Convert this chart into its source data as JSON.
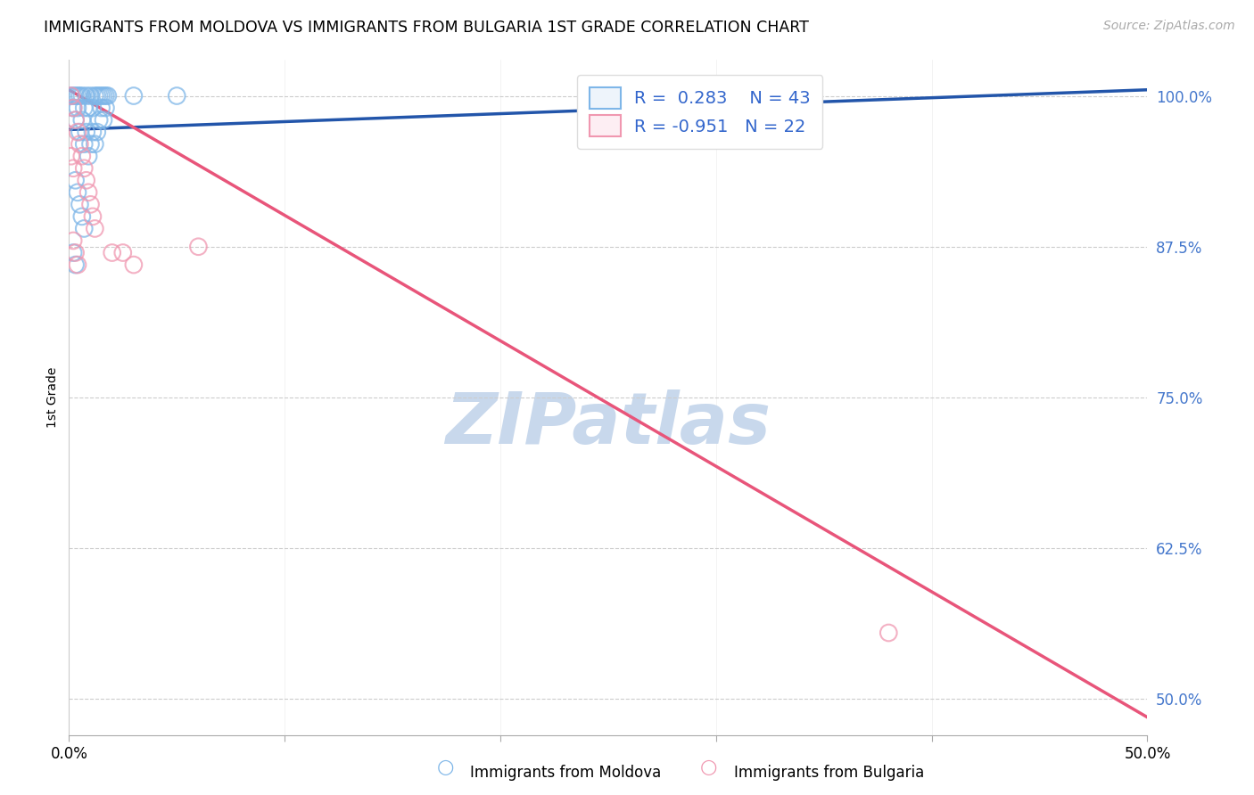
{
  "title": "IMMIGRANTS FROM MOLDOVA VS IMMIGRANTS FROM BULGARIA 1ST GRADE CORRELATION CHART",
  "source": "Source: ZipAtlas.com",
  "ylabel": "1st Grade",
  "ytick_labels": [
    "100.0%",
    "87.5%",
    "75.0%",
    "62.5%",
    "50.0%"
  ],
  "ytick_values": [
    1.0,
    0.875,
    0.75,
    0.625,
    0.5
  ],
  "xlim": [
    0.0,
    0.5
  ],
  "ylim": [
    0.47,
    1.03
  ],
  "moldova_R": 0.283,
  "moldova_N": 43,
  "bulgaria_R": -0.951,
  "bulgaria_N": 22,
  "moldova_color": "#7EB6E8",
  "bulgaria_color": "#F097B0",
  "moldova_line_color": "#2255AA",
  "bulgaria_line_color": "#E8557A",
  "watermark_color": "#C8D8EC",
  "background_color": "#FFFFFF",
  "moldova_scatter_x": [
    0.001,
    0.002,
    0.002,
    0.003,
    0.003,
    0.004,
    0.004,
    0.005,
    0.005,
    0.006,
    0.006,
    0.007,
    0.007,
    0.008,
    0.008,
    0.009,
    0.009,
    0.01,
    0.01,
    0.011,
    0.011,
    0.012,
    0.012,
    0.013,
    0.013,
    0.014,
    0.014,
    0.015,
    0.015,
    0.016,
    0.016,
    0.017,
    0.017,
    0.018,
    0.003,
    0.004,
    0.005,
    0.006,
    0.007,
    0.05,
    0.002,
    0.003,
    0.03
  ],
  "moldova_scatter_y": [
    1.0,
    1.0,
    0.99,
    1.0,
    0.98,
    1.0,
    0.99,
    1.0,
    0.97,
    1.0,
    0.98,
    0.99,
    0.96,
    1.0,
    0.97,
    0.99,
    0.95,
    1.0,
    0.96,
    0.99,
    0.97,
    1.0,
    0.96,
    1.0,
    0.97,
    1.0,
    0.98,
    1.0,
    0.99,
    1.0,
    0.98,
    1.0,
    0.99,
    1.0,
    0.93,
    0.92,
    0.91,
    0.9,
    0.89,
    1.0,
    0.87,
    0.86,
    1.0
  ],
  "bulgaria_scatter_x": [
    0.001,
    0.002,
    0.003,
    0.004,
    0.005,
    0.006,
    0.007,
    0.008,
    0.009,
    0.01,
    0.011,
    0.012,
    0.002,
    0.003,
    0.004,
    0.02,
    0.025,
    0.03,
    0.001,
    0.002,
    0.38,
    0.06
  ],
  "bulgaria_scatter_y": [
    1.0,
    0.99,
    0.98,
    0.97,
    0.96,
    0.95,
    0.94,
    0.93,
    0.92,
    0.91,
    0.9,
    0.89,
    0.88,
    0.87,
    0.86,
    0.87,
    0.87,
    0.86,
    0.95,
    0.94,
    0.555,
    0.875
  ],
  "moldova_line_x0": 0.0,
  "moldova_line_x1": 0.5,
  "moldova_line_y0": 0.972,
  "moldova_line_y1": 1.005,
  "bulgaria_line_x0": 0.0,
  "bulgaria_line_x1": 0.5,
  "bulgaria_line_y0": 1.005,
  "bulgaria_line_y1": 0.485
}
